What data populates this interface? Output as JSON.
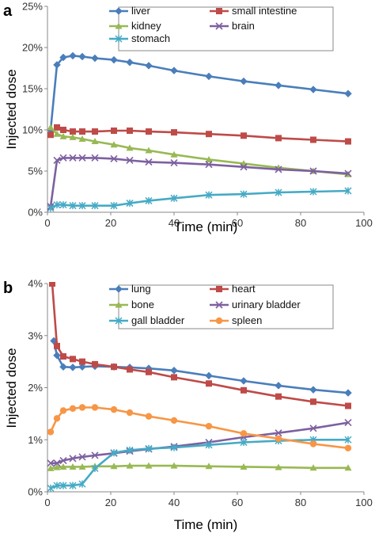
{
  "chart_data": [
    {
      "type": "line",
      "panel_label": "a",
      "xlabel": "Time (min)",
      "ylabel": "Injected dose",
      "xlim": [
        0,
        100
      ],
      "ylim": [
        0,
        25
      ],
      "x_ticks": [
        "0",
        "20",
        "40",
        "60",
        "80",
        "100"
      ],
      "y_ticks": [
        "0%",
        "5%",
        "10%",
        "15%",
        "20%",
        "25%"
      ],
      "grid": false,
      "legend_position": "top",
      "series": [
        {
          "name": "liver",
          "color": "#4a7ebb",
          "marker": "diamond",
          "x": [
            1,
            3,
            5,
            8,
            11,
            15,
            21,
            26,
            32,
            40,
            51,
            62,
            73,
            84,
            95
          ],
          "y": [
            10.0,
            17.9,
            18.8,
            19.0,
            18.9,
            18.7,
            18.5,
            18.2,
            17.8,
            17.2,
            16.5,
            15.9,
            15.4,
            14.9,
            14.4
          ]
        },
        {
          "name": "small intestine",
          "color": "#be4b48",
          "marker": "square",
          "x": [
            1,
            3,
            5,
            8,
            11,
            15,
            21,
            26,
            32,
            40,
            51,
            62,
            73,
            84,
            95
          ],
          "y": [
            9.4,
            10.3,
            10.0,
            9.8,
            9.8,
            9.8,
            9.9,
            9.9,
            9.8,
            9.7,
            9.5,
            9.3,
            9.0,
            8.8,
            8.6
          ]
        },
        {
          "name": "kidney",
          "color": "#98b954",
          "marker": "triangle",
          "x": [
            1,
            3,
            5,
            8,
            11,
            15,
            21,
            26,
            32,
            40,
            51,
            62,
            73,
            84,
            95
          ],
          "y": [
            10.3,
            9.5,
            9.2,
            9.1,
            8.9,
            8.6,
            8.2,
            7.8,
            7.5,
            7.0,
            6.4,
            5.9,
            5.4,
            5.0,
            4.6
          ]
        },
        {
          "name": "brain",
          "color": "#7d60a0",
          "marker": "x",
          "x": [
            1,
            3,
            5,
            8,
            11,
            15,
            21,
            26,
            32,
            40,
            51,
            62,
            73,
            84,
            95
          ],
          "y": [
            0.7,
            6.3,
            6.6,
            6.6,
            6.6,
            6.6,
            6.5,
            6.3,
            6.1,
            6.0,
            5.8,
            5.5,
            5.2,
            5.0,
            4.7
          ]
        },
        {
          "name": "stomach",
          "color": "#46aac5",
          "marker": "asterisk",
          "x": [
            1,
            3,
            5,
            8,
            11,
            15,
            21,
            26,
            32,
            40,
            51,
            62,
            73,
            84,
            95
          ],
          "y": [
            0.5,
            0.9,
            0.9,
            0.8,
            0.8,
            0.8,
            0.8,
            1.1,
            1.4,
            1.7,
            2.1,
            2.2,
            2.4,
            2.5,
            2.6
          ]
        }
      ]
    },
    {
      "type": "line",
      "panel_label": "b",
      "xlabel": "Time (min)",
      "ylabel": "Injected dose",
      "xlim": [
        0,
        100
      ],
      "ylim": [
        0,
        4
      ],
      "x_ticks": [
        "0",
        "20",
        "40",
        "60",
        "80",
        "100"
      ],
      "y_ticks": [
        "0%",
        "1%",
        "2%",
        "3%",
        "4%"
      ],
      "grid": false,
      "legend_position": "top",
      "series": [
        {
          "name": "lung",
          "color": "#4a7ebb",
          "marker": "diamond",
          "x": [
            2,
            3,
            5,
            8,
            11,
            15,
            21,
            26,
            32,
            40,
            51,
            62,
            73,
            84,
            95
          ],
          "y": [
            2.9,
            2.62,
            2.4,
            2.39,
            2.4,
            2.41,
            2.4,
            2.39,
            2.37,
            2.33,
            2.23,
            2.13,
            2.04,
            1.96,
            1.9
          ]
        },
        {
          "name": "heart",
          "color": "#be4b48",
          "marker": "square",
          "x": [
            1.5,
            3,
            5,
            8,
            11,
            15,
            21,
            26,
            32,
            40,
            51,
            62,
            73,
            84,
            95
          ],
          "y": [
            4.0,
            2.8,
            2.6,
            2.55,
            2.5,
            2.45,
            2.4,
            2.35,
            2.3,
            2.2,
            2.08,
            1.95,
            1.83,
            1.73,
            1.65
          ]
        },
        {
          "name": "bone",
          "color": "#98b954",
          "marker": "triangle",
          "x": [
            1,
            3,
            5,
            8,
            11,
            15,
            21,
            26,
            32,
            40,
            51,
            62,
            73,
            84,
            95
          ],
          "y": [
            0.45,
            0.47,
            0.48,
            0.48,
            0.48,
            0.49,
            0.49,
            0.5,
            0.5,
            0.5,
            0.49,
            0.48,
            0.47,
            0.46,
            0.46
          ]
        },
        {
          "name": "urinary bladder",
          "color": "#7d60a0",
          "marker": "x",
          "x": [
            1,
            3,
            5,
            8,
            11,
            15,
            21,
            26,
            32,
            40,
            51,
            62,
            73,
            84,
            95
          ],
          "y": [
            0.55,
            0.55,
            0.6,
            0.64,
            0.67,
            0.7,
            0.74,
            0.78,
            0.82,
            0.87,
            0.95,
            1.05,
            1.13,
            1.22,
            1.33
          ]
        },
        {
          "name": "gall bladder",
          "color": "#46aac5",
          "marker": "asterisk",
          "x": [
            1,
            3,
            5,
            8,
            11,
            15,
            21,
            26,
            32,
            40,
            51,
            62,
            73,
            84,
            95
          ],
          "y": [
            0.07,
            0.12,
            0.12,
            0.12,
            0.15,
            0.45,
            0.75,
            0.8,
            0.83,
            0.85,
            0.9,
            0.95,
            0.98,
            1.0,
            1.0
          ]
        },
        {
          "name": "spleen",
          "color": "#f79646",
          "marker": "circle",
          "x": [
            1,
            3,
            5,
            8,
            11,
            15,
            21,
            26,
            32,
            40,
            51,
            62,
            73,
            84,
            95
          ],
          "y": [
            1.15,
            1.41,
            1.56,
            1.6,
            1.62,
            1.62,
            1.58,
            1.52,
            1.45,
            1.37,
            1.26,
            1.12,
            1.02,
            0.92,
            0.84
          ]
        }
      ]
    }
  ]
}
